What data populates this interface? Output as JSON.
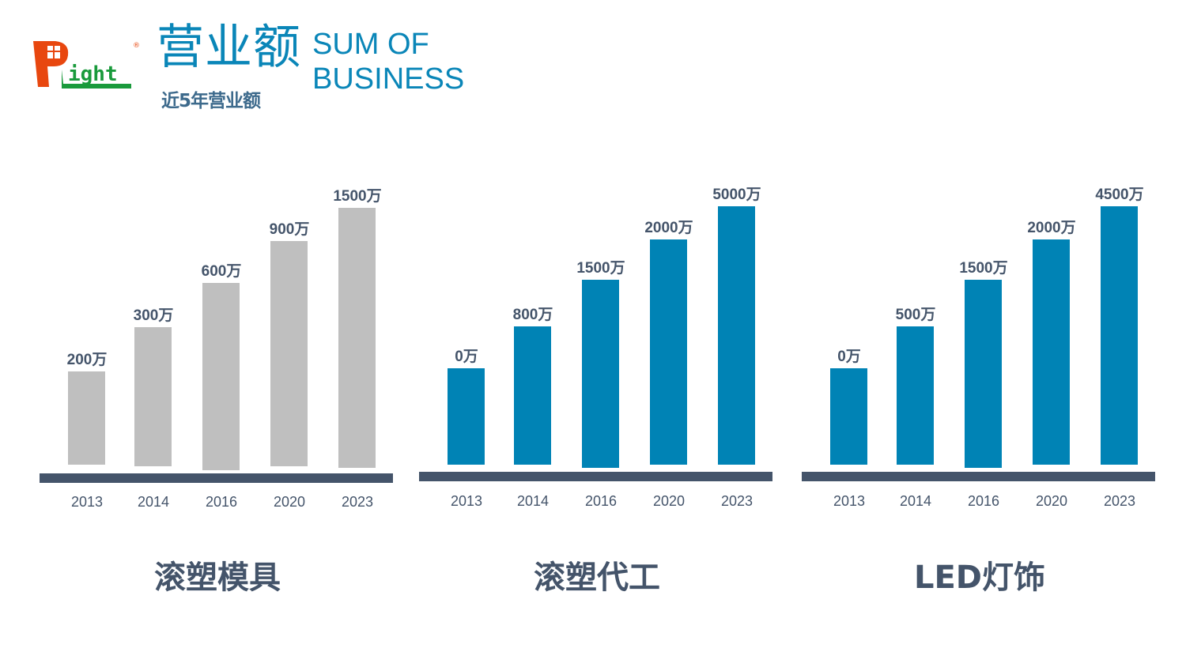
{
  "header": {
    "title_cn": "营业额",
    "title_en_line1": "SUM OF",
    "title_en_line2": "BUSINESS",
    "subtitle": "近5年营业额",
    "logo_text": "Plight"
  },
  "colors": {
    "gray_bar": "#bfbfbf",
    "blue_bar": "#0083b5",
    "axis": "#44546a",
    "title": "#0a86b8"
  },
  "chart_data": [
    {
      "type": "bar",
      "title": "滚塑模具",
      "categories": [
        "2013",
        "2014",
        "2016",
        "2020",
        "2023"
      ],
      "values": [
        200,
        300,
        600,
        900,
        1500
      ],
      "labels": [
        "200万",
        "300万",
        "600万",
        "900万",
        "1500万"
      ],
      "unit": "万",
      "color": "#bfbfbf"
    },
    {
      "type": "bar",
      "title": "滚塑代工",
      "categories": [
        "2013",
        "2014",
        "2016",
        "2020",
        "2023"
      ],
      "values": [
        0,
        800,
        1500,
        2000,
        5000
      ],
      "labels": [
        "0万",
        "800万",
        "1500万",
        "2000万",
        "5000万"
      ],
      "unit": "万",
      "color": "#0083b5"
    },
    {
      "type": "bar",
      "title": "LED灯饰",
      "categories": [
        "2013",
        "2014",
        "2016",
        "2020",
        "2023"
      ],
      "values": [
        0,
        500,
        1500,
        2000,
        4500
      ],
      "labels": [
        "0万",
        "500万",
        "1500万",
        "2000万",
        "4500万"
      ],
      "unit": "万",
      "color": "#0083b5"
    }
  ]
}
